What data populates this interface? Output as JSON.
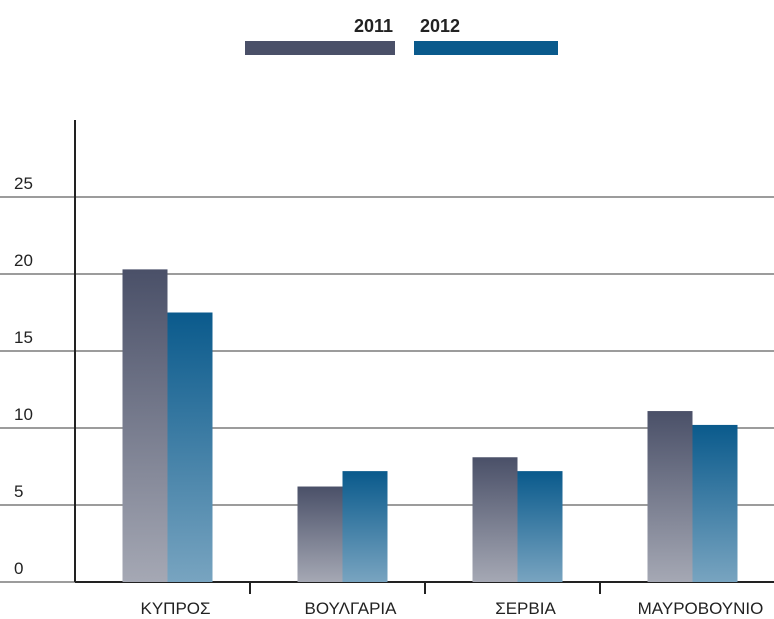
{
  "chart_data": {
    "type": "bar",
    "categories": [
      "ΚΥΠΡΟΣ",
      "ΒΟΥΛΓΑΡΙΑ",
      "ΣΕΡΒΙΑ",
      "ΜΑΥΡΟΒΟΥΝΙΟ"
    ],
    "series": [
      {
        "name": "2011",
        "color": "#4a5068",
        "values": [
          20.3,
          6.2,
          8.1,
          11.1
        ]
      },
      {
        "name": "2012",
        "color": "#0a5a8c",
        "values": [
          17.5,
          7.2,
          7.2,
          10.2
        ]
      }
    ],
    "ylim": [
      0,
      30
    ],
    "yticks": [
      0,
      5,
      10,
      15,
      20,
      25
    ],
    "grid": true,
    "legend": "top"
  }
}
